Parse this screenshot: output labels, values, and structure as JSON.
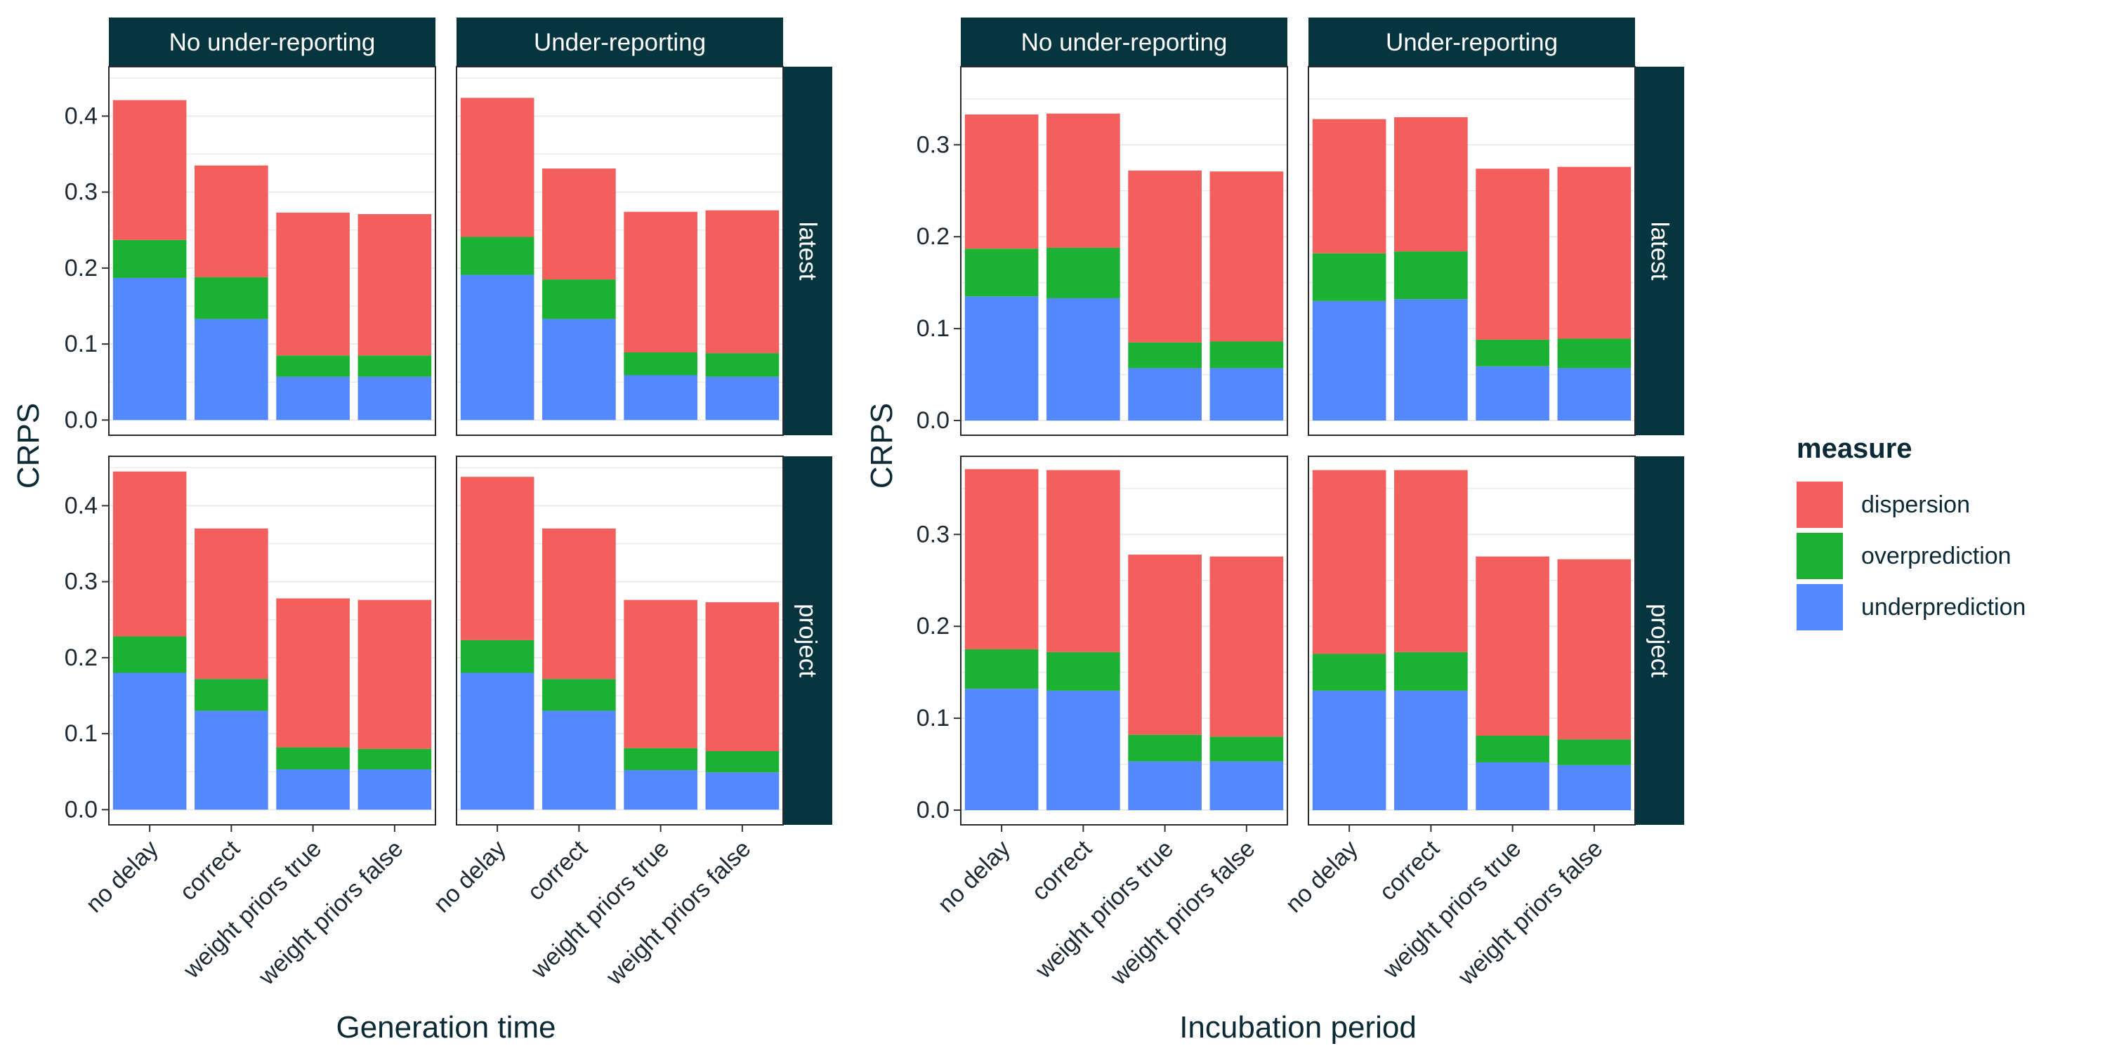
{
  "chart_data": [
    {
      "type": "bar",
      "stacked": true,
      "xlabel": "Generation time",
      "ylabel": "CRPS",
      "column_facets": [
        "No under-reporting",
        "Under-reporting"
      ],
      "row_facets": [
        "latest",
        "project"
      ],
      "categories": [
        "no delay",
        "correct",
        "weight priors true",
        "weight priors false"
      ],
      "y_ticks": [
        0.0,
        0.1,
        0.2,
        0.3,
        0.4
      ],
      "ylim": [
        -0.02,
        0.465
      ],
      "legend_placement": "right",
      "panels": [
        {
          "col": "No under-reporting",
          "row": "latest",
          "series": [
            {
              "name": "underprediction",
              "values": [
                0.187,
                0.133,
                0.057,
                0.057
              ]
            },
            {
              "name": "overprediction",
              "values": [
                0.05,
                0.055,
                0.028,
                0.028
              ]
            },
            {
              "name": "dispersion",
              "values": [
                0.184,
                0.147,
                0.188,
                0.186
              ]
            }
          ]
        },
        {
          "col": "Under-reporting",
          "row": "latest",
          "series": [
            {
              "name": "underprediction",
              "values": [
                0.191,
                0.133,
                0.059,
                0.057
              ]
            },
            {
              "name": "overprediction",
              "values": [
                0.05,
                0.052,
                0.03,
                0.031
              ]
            },
            {
              "name": "dispersion",
              "values": [
                0.183,
                0.146,
                0.185,
                0.188
              ]
            }
          ]
        },
        {
          "col": "No under-reporting",
          "row": "project",
          "series": [
            {
              "name": "underprediction",
              "values": [
                0.18,
                0.13,
                0.053,
                0.053
              ]
            },
            {
              "name": "overprediction",
              "values": [
                0.048,
                0.042,
                0.029,
                0.027
              ]
            },
            {
              "name": "dispersion",
              "values": [
                0.217,
                0.198,
                0.196,
                0.196
              ]
            }
          ]
        },
        {
          "col": "Under-reporting",
          "row": "project",
          "series": [
            {
              "name": "underprediction",
              "values": [
                0.18,
                0.13,
                0.052,
                0.049
              ]
            },
            {
              "name": "overprediction",
              "values": [
                0.043,
                0.042,
                0.029,
                0.028
              ]
            },
            {
              "name": "dispersion",
              "values": [
                0.215,
                0.198,
                0.195,
                0.196
              ]
            }
          ]
        }
      ]
    },
    {
      "type": "bar",
      "stacked": true,
      "xlabel": "Incubation period",
      "ylabel": "CRPS",
      "column_facets": [
        "No under-reporting",
        "Under-reporting"
      ],
      "row_facets": [
        "latest",
        "project"
      ],
      "categories": [
        "no delay",
        "correct",
        "weight priors true",
        "weight priors false"
      ],
      "y_ticks": [
        0.0,
        0.1,
        0.2,
        0.3
      ],
      "ylim": [
        -0.016,
        0.385
      ],
      "legend_placement": "right",
      "panels": [
        {
          "col": "No under-reporting",
          "row": "latest",
          "series": [
            {
              "name": "underprediction",
              "values": [
                0.135,
                0.133,
                0.057,
                0.057
              ]
            },
            {
              "name": "overprediction",
              "values": [
                0.052,
                0.055,
                0.028,
                0.029
              ]
            },
            {
              "name": "dispersion",
              "values": [
                0.146,
                0.146,
                0.187,
                0.185
              ]
            }
          ]
        },
        {
          "col": "Under-reporting",
          "row": "latest",
          "series": [
            {
              "name": "underprediction",
              "values": [
                0.13,
                0.132,
                0.059,
                0.057
              ]
            },
            {
              "name": "overprediction",
              "values": [
                0.052,
                0.052,
                0.029,
                0.032
              ]
            },
            {
              "name": "dispersion",
              "values": [
                0.146,
                0.146,
                0.186,
                0.187
              ]
            }
          ]
        },
        {
          "col": "No under-reporting",
          "row": "project",
          "series": [
            {
              "name": "underprediction",
              "values": [
                0.132,
                0.13,
                0.053,
                0.053
              ]
            },
            {
              "name": "overprediction",
              "values": [
                0.043,
                0.042,
                0.029,
                0.027
              ]
            },
            {
              "name": "dispersion",
              "values": [
                0.196,
                0.198,
                0.196,
                0.196
              ]
            }
          ]
        },
        {
          "col": "Under-reporting",
          "row": "project",
          "series": [
            {
              "name": "underprediction",
              "values": [
                0.13,
                0.13,
                0.052,
                0.049
              ]
            },
            {
              "name": "overprediction",
              "values": [
                0.04,
                0.042,
                0.029,
                0.028
              ]
            },
            {
              "name": "dispersion",
              "values": [
                0.2,
                0.198,
                0.195,
                0.196
              ]
            }
          ]
        }
      ]
    }
  ],
  "legend": {
    "title": "measure",
    "items": [
      {
        "name": "dispersion",
        "color": "#F8766D"
      },
      {
        "name": "overprediction",
        "color": "#1FB53A"
      },
      {
        "name": "underprediction",
        "color": "#5A8CFF"
      }
    ]
  },
  "colors": {
    "dispersion": "#F25F5C",
    "overprediction": "#1BB233",
    "underprediction": "#5488FF",
    "strip_background": "#07353F",
    "panel_border": "#2b2b2b",
    "gridline": "#ececec"
  }
}
